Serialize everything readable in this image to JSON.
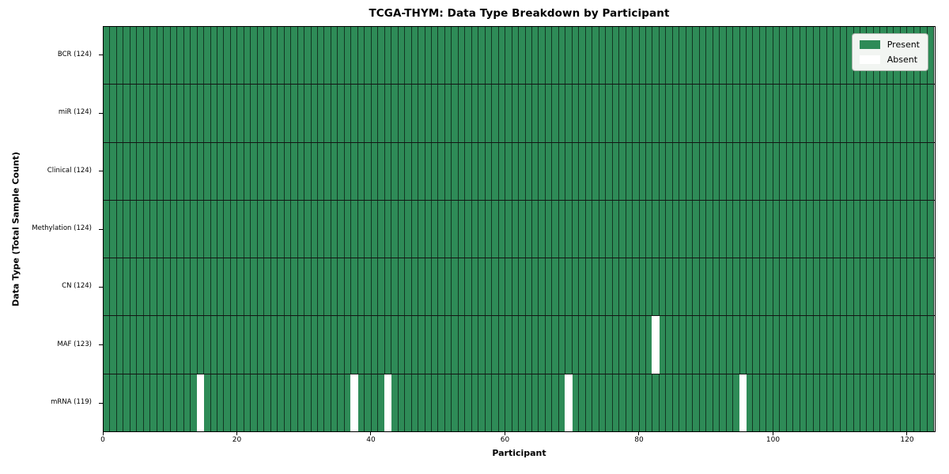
{
  "chart_data": {
    "type": "heatmap",
    "title": "TCGA-THYM: Data Type Breakdown by Participant",
    "xlabel": "Participant",
    "ylabel": "Data Type (Total Sample Count)",
    "n_participants": 124,
    "x_ticks": [
      0,
      20,
      40,
      60,
      80,
      100,
      120
    ],
    "xlim": [
      0,
      124.25
    ],
    "grid": "cell-edges",
    "legend_position": "upper right",
    "rows": [
      {
        "data_type": "BCR",
        "label": "BCR (124)",
        "present_count": 124,
        "absent_participants": []
      },
      {
        "data_type": "miR",
        "label": "miR (124)",
        "present_count": 124,
        "absent_participants": []
      },
      {
        "data_type": "Clinical",
        "label": "Clinical (124)",
        "present_count": 124,
        "absent_participants": []
      },
      {
        "data_type": "Methylation",
        "label": "Methylation (124)",
        "present_count": 124,
        "absent_participants": []
      },
      {
        "data_type": "CN",
        "label": "CN (124)",
        "present_count": 124,
        "absent_participants": []
      },
      {
        "data_type": "MAF",
        "label": "MAF (123)",
        "present_count": 123,
        "absent_participants": [
          82
        ]
      },
      {
        "data_type": "mRNA",
        "label": "mRNA (119)",
        "present_count": 119,
        "absent_participants": [
          14,
          37,
          42,
          69,
          95
        ]
      }
    ],
    "legend": [
      {
        "label": "Present",
        "color": "#2E8B57"
      },
      {
        "label": "Absent",
        "color": "#FFFFFF"
      }
    ],
    "colors": {
      "present": "#2E8B57",
      "absent": "#FFFFFF",
      "cell_edge": "rgba(0,0,0,0.6)",
      "row_separator": "#141414",
      "legend_background": "#F2F5F2"
    }
  }
}
